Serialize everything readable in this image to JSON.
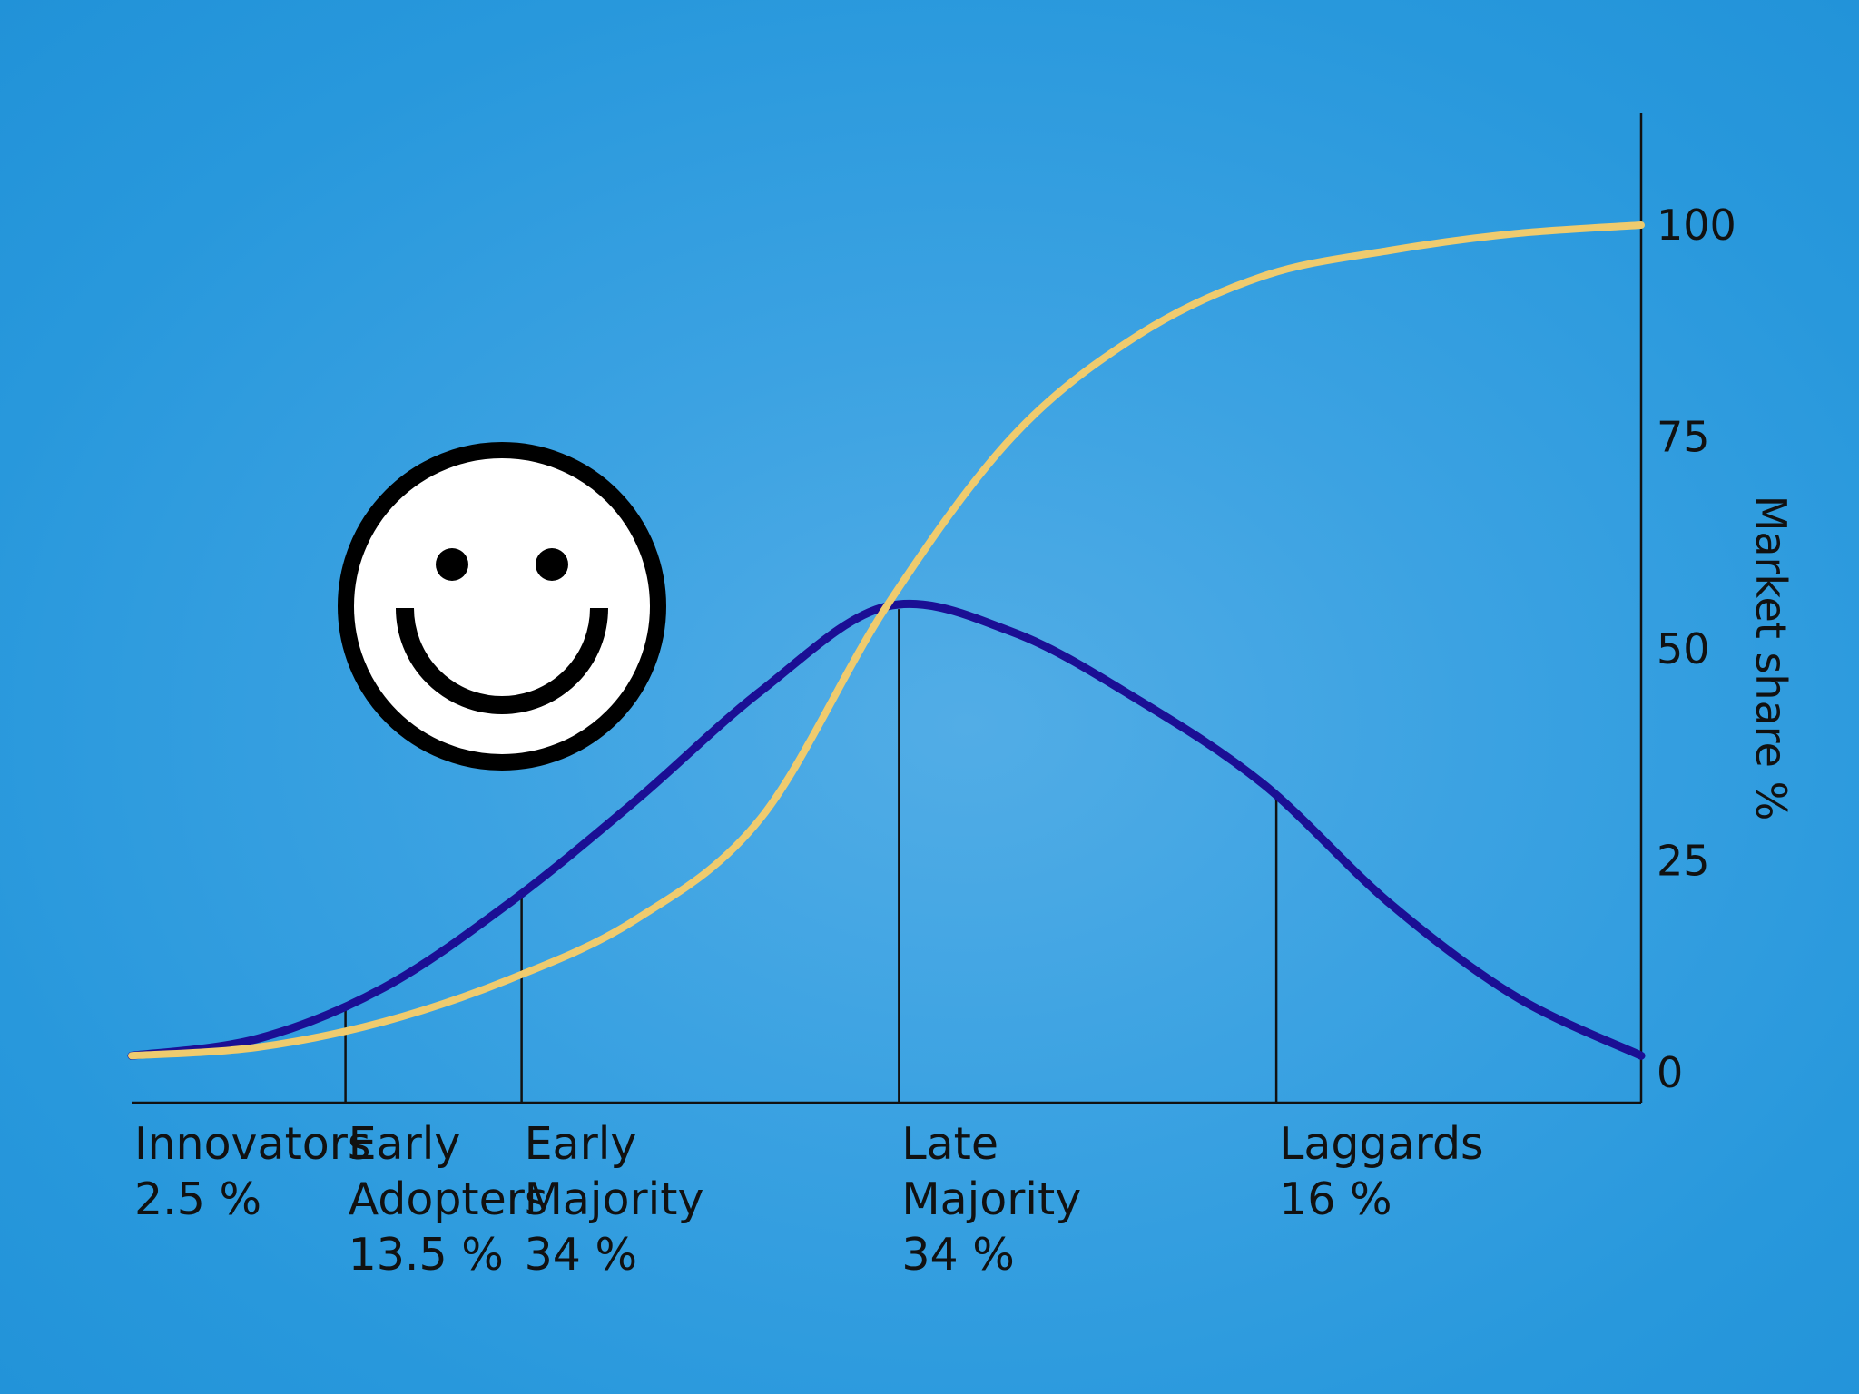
{
  "chart_data": {
    "type": "line",
    "ylabel": "Market share %",
    "y_axis_position": "right",
    "ylim": [
      0,
      100
    ],
    "yticks": [
      0,
      25,
      50,
      75,
      100
    ],
    "grid": false,
    "legend": "none",
    "x": [
      0,
      1,
      2,
      3,
      4,
      5,
      6,
      7,
      8,
      9,
      10,
      11,
      12
    ],
    "series": [
      {
        "color": "#1b0f94",
        "values": [
          2,
          4,
          10,
          20,
          32,
          45,
          55,
          52,
          44,
          34,
          20,
          9,
          2
        ]
      },
      {
        "color": "#efcb6e",
        "values": [
          2,
          3,
          6,
          11,
          18,
          30,
          55,
          75,
          87,
          94,
          97,
          99,
          100
        ]
      }
    ],
    "segments": [
      {
        "name": "Innovators",
        "share": "2.5 %",
        "x_end": 1.7
      },
      {
        "name": "Early Adopters",
        "name_lines": [
          "Early",
          "Adopters"
        ],
        "share": "13.5 %",
        "x_end": 3.1
      },
      {
        "name": "Early Majority",
        "name_lines": [
          "Early",
          "Majority"
        ],
        "share": "34 %",
        "x_end": 6.1
      },
      {
        "name": "Late Majority",
        "name_lines": [
          "Late",
          "Majority"
        ],
        "share": "34 %",
        "x_end": 9.1
      },
      {
        "name": "Laggards",
        "share": "16 %",
        "x_end": 12
      }
    ],
    "segment_dividers_x": [
      1.7,
      3.1,
      6.1,
      9.1
    ]
  },
  "icons": {
    "smiley": "smiley-face-icon"
  },
  "colors": {
    "background": "#3ba2e2",
    "axis": "#111111",
    "bell_curve": "#1b0f94",
    "s_curve": "#efcb6e",
    "smiley_fill": "#ffffff",
    "smiley_stroke": "#000000"
  }
}
